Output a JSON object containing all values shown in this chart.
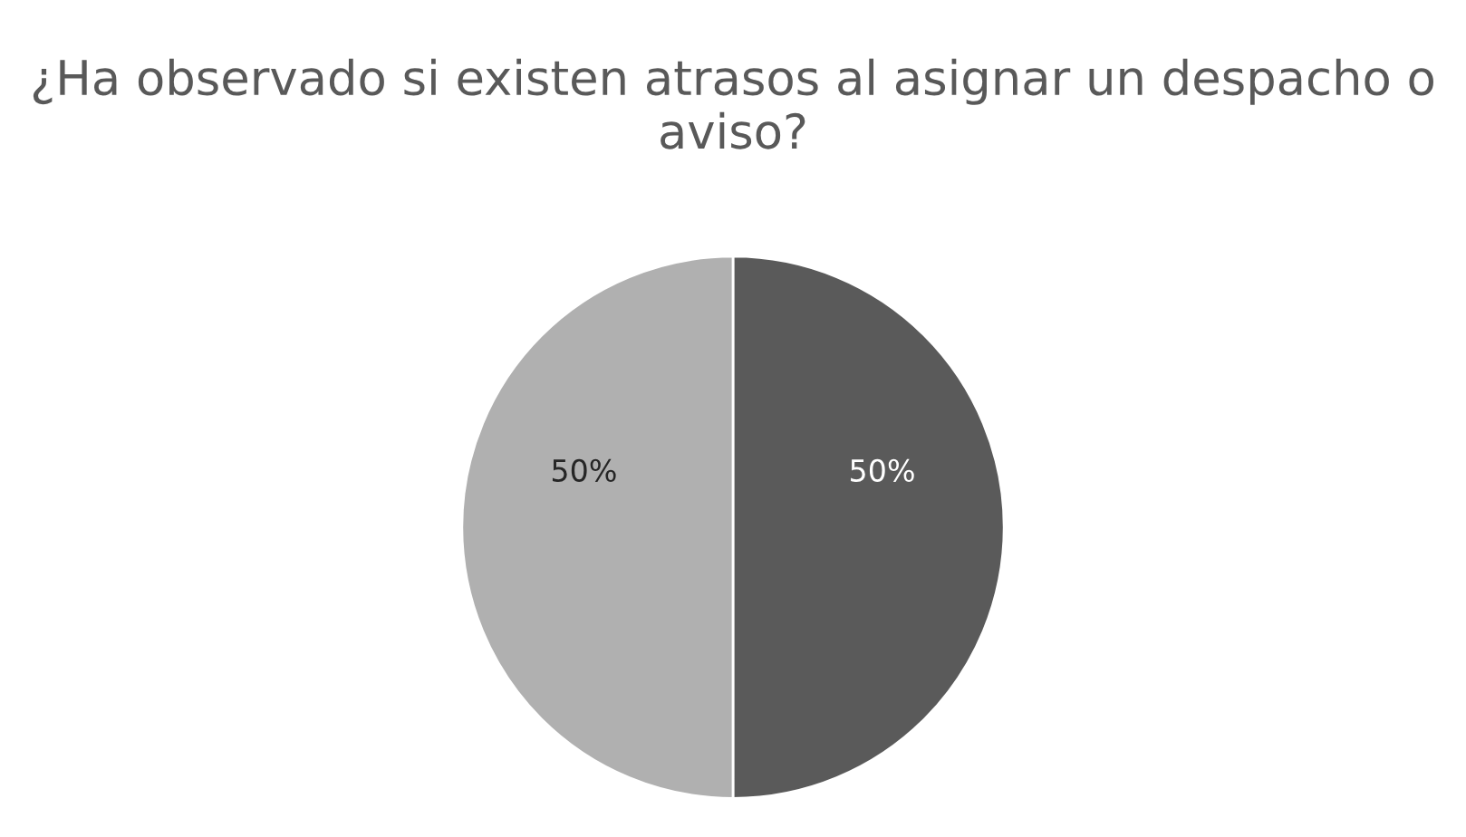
{
  "chart_data": {
    "type": "pie",
    "title": "¿Ha observado si existen atrasos al asignar un despacho o aviso?",
    "categories": [
      null,
      null
    ],
    "values": [
      50,
      50
    ],
    "colors": [
      "#5a5a5a",
      "#b0b0b0"
    ],
    "value_labels": [
      "50%",
      "50%"
    ]
  }
}
